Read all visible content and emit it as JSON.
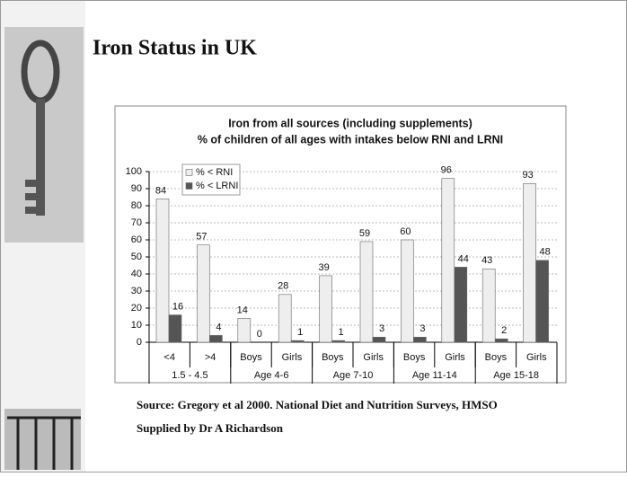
{
  "slide_title": "Iron Status in UK",
  "chart_data": {
    "type": "bar",
    "title": [
      "Iron from all sources (including supplements)",
      "% of children of all ages with intakes below RNI and LRNI"
    ],
    "categories": [
      "<4",
      ">4",
      "Boys",
      "Girls",
      "Boys",
      "Girls",
      "Boys",
      "Girls",
      "Boys",
      "Girls"
    ],
    "groups": [
      "1.5 - 4.5",
      "Age 4-6",
      "Age 7-10",
      "Age 11-14",
      "Age 15-18"
    ],
    "series": [
      {
        "name": "% < RNI",
        "color": "#eeeeee",
        "values": [
          84,
          57,
          14,
          28,
          39,
          59,
          60,
          96,
          43,
          93
        ]
      },
      {
        "name": "% < LRNI",
        "color": "#555555",
        "values": [
          16,
          4,
          0,
          1,
          1,
          3,
          3,
          44,
          2,
          48
        ]
      }
    ],
    "ylim": [
      0,
      100
    ],
    "yticks": [
      0,
      10,
      20,
      30,
      40,
      50,
      60,
      70,
      80,
      90,
      100
    ],
    "grid": true,
    "legend": "top-left"
  },
  "source": [
    "Source: Gregory et al 2000. National Diet and Nutrition Surveys, HMSO",
    "Supplied by Dr A Richardson"
  ]
}
